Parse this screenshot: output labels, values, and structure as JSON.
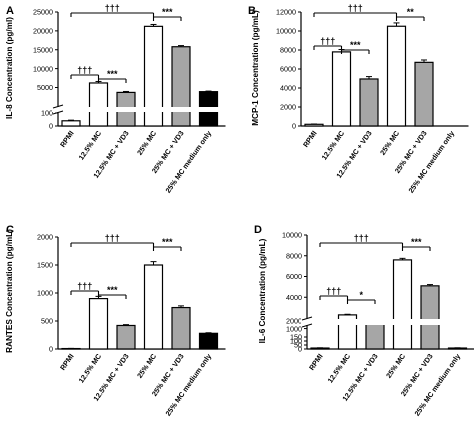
{
  "chart_data": [
    {
      "panel": "A",
      "type": "bar",
      "ylabel": "IL-8 Concentration (pg/ml)",
      "categories": [
        "RPMI",
        "12.5% MC",
        "12.5% MC + VD3",
        "25% MC",
        "25% MC + VD3",
        "25% MC medium only"
      ],
      "values": [
        40,
        6200,
        3700,
        21200,
        15800,
        3900
      ],
      "errors": [
        5,
        400,
        250,
        500,
        300,
        150
      ],
      "fills": [
        "#ffffff",
        "#ffffff",
        "#a6a6a6",
        "#ffffff",
        "#a6a6a6",
        "#000000"
      ],
      "axis_break": {
        "lower": [
          0,
          100
        ],
        "upper": [
          100,
          25000
        ]
      },
      "ticks": [
        0,
        100,
        5000,
        10000,
        15000,
        20000,
        25000
      ],
      "tick_labels": [
        "0",
        "100",
        "5000",
        "10000",
        "15000",
        "20000",
        "25000"
      ],
      "brackets": [
        {
          "from": 0,
          "to": 3,
          "label": "†††"
        },
        {
          "from": 3,
          "to": 4,
          "label": "***"
        },
        {
          "from": 0,
          "to": 1,
          "label": "†††"
        },
        {
          "from": 1,
          "to": 2,
          "label": "***"
        }
      ]
    },
    {
      "panel": "B",
      "type": "bar",
      "ylabel": "MCP-1 Concentration (pg/mL)",
      "categories": [
        "RPMI",
        "12.5% MC",
        "12.5% MC + VD3",
        "25% MC",
        "25% MC + VD3",
        "25% MC medium only"
      ],
      "values": [
        180,
        7800,
        4950,
        10500,
        6700,
        0
      ],
      "errors": [
        30,
        250,
        250,
        350,
        250,
        0
      ],
      "fills": [
        "#ffffff",
        "#ffffff",
        "#a6a6a6",
        "#ffffff",
        "#a6a6a6",
        "#000000"
      ],
      "ylim": [
        0,
        12000
      ],
      "ticks": [
        0,
        2000,
        4000,
        6000,
        8000,
        10000,
        12000
      ],
      "tick_labels": [
        "0",
        "2000",
        "4000",
        "6000",
        "8000",
        "10000",
        "12000"
      ],
      "brackets": [
        {
          "from": 0,
          "to": 3,
          "label": "†††"
        },
        {
          "from": 3,
          "to": 4,
          "label": "**"
        },
        {
          "from": 0,
          "to": 1,
          "label": "†††"
        },
        {
          "from": 1,
          "to": 2,
          "label": "***"
        }
      ]
    },
    {
      "panel": "C",
      "type": "bar",
      "ylabel": "RANTES Concentration (pg/mL)",
      "categories": [
        "RPMI",
        "12.5% MC",
        "12.5% MC + VD3",
        "25% MC",
        "25% MC + VD3",
        "25% MC medium only"
      ],
      "values": [
        8,
        900,
        420,
        1500,
        740,
        280
      ],
      "errors": [
        3,
        40,
        15,
        60,
        30,
        10
      ],
      "fills": [
        "#ffffff",
        "#ffffff",
        "#a6a6a6",
        "#ffffff",
        "#a6a6a6",
        "#000000"
      ],
      "ylim": [
        0,
        2000
      ],
      "ticks": [
        0,
        500,
        1000,
        1500,
        2000
      ],
      "tick_labels": [
        "0",
        "500",
        "1000",
        "1500",
        "2000"
      ],
      "brackets": [
        {
          "from": 0,
          "to": 3,
          "label": "†††"
        },
        {
          "from": 3,
          "to": 4,
          "label": "***"
        },
        {
          "from": 0,
          "to": 1,
          "label": "†††"
        },
        {
          "from": 1,
          "to": 2,
          "label": "***"
        }
      ]
    },
    {
      "panel": "D",
      "type": "bar",
      "ylabel": "IL-6 Concentration (pg/mL)",
      "categories": [
        "RPMI",
        "12.5% MC",
        "12.5% MC + VD3",
        "25% MC",
        "25% MC + VD3",
        "25% MC medium only"
      ],
      "values": [
        12,
        2300,
        1650,
        7600,
        5100,
        12
      ],
      "errors": [
        3,
        60,
        60,
        150,
        120,
        3
      ],
      "fills": [
        "#ffffff",
        "#ffffff",
        "#a6a6a6",
        "#ffffff",
        "#a6a6a6",
        "#000000"
      ],
      "axis_break": {
        "lower": [
          0,
          2000
        ],
        "upper": [
          2000,
          10000
        ]
      },
      "ticks": [
        0,
        50,
        100,
        150,
        1000,
        2000,
        4000,
        6000,
        8000,
        10000
      ],
      "tick_labels": [
        "0",
        "50",
        "100",
        "150",
        "1000",
        "2000",
        "4000",
        "6000",
        "8000",
        "10000"
      ],
      "brackets": [
        {
          "from": 0,
          "to": 3,
          "label": "†††"
        },
        {
          "from": 3,
          "to": 4,
          "label": "***"
        },
        {
          "from": 0,
          "to": 1,
          "label": "†††"
        },
        {
          "from": 1,
          "to": 2,
          "label": "*"
        }
      ]
    }
  ]
}
